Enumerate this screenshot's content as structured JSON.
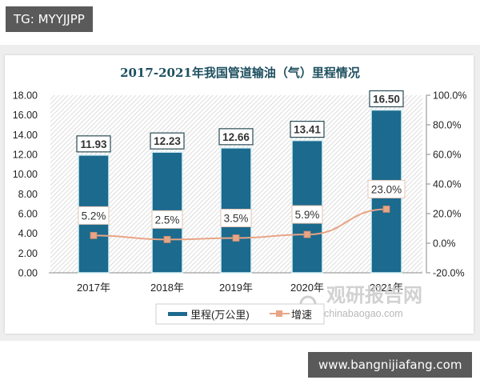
{
  "watermarks": {
    "top_left": "TG: MYYJJPP",
    "bottom_right": "www.bangnijiafang.com",
    "source_logo_cn": "观研报告网",
    "source_logo_en": "chinabaogao.com"
  },
  "colors": {
    "bar": "#1c6a8e",
    "bar_border": "#d8f2f7",
    "line": "#e8a586",
    "marker": "#e8a586",
    "title": "#1d4f5f"
  },
  "chart_data": {
    "type": "bar",
    "title": "2017-2021年我国管道输油（气）里程情况",
    "categories": [
      "2017年",
      "2018年",
      "2019年",
      "2020年",
      "2021年"
    ],
    "series": [
      {
        "name": "里程(万公里)",
        "type": "bar",
        "axis": "left",
        "values": [
          11.93,
          12.23,
          12.66,
          13.41,
          16.5
        ],
        "labels": [
          "11.93",
          "12.23",
          "12.66",
          "13.41",
          "16.50"
        ]
      },
      {
        "name": "增速",
        "type": "line",
        "axis": "right",
        "values": [
          5.2,
          2.5,
          3.5,
          5.9,
          23.0
        ],
        "labels": [
          "5.2%",
          "2.5%",
          "3.5%",
          "5.9%",
          "23.0%"
        ]
      }
    ],
    "left_axis": {
      "ylim": [
        0,
        18
      ],
      "ticks": [
        "0.00",
        "2.00",
        "4.00",
        "6.00",
        "8.00",
        "10.00",
        "12.00",
        "14.00",
        "16.00",
        "18.00"
      ]
    },
    "right_axis": {
      "ylim": [
        -20,
        100
      ],
      "ticks": [
        "-20.0%",
        "0.0%",
        "20.0%",
        "40.0%",
        "60.0%",
        "80.0%",
        "100.0%"
      ]
    },
    "xlabel": "",
    "ylabel": "",
    "grid": false,
    "plot_background": "diagonal-hatch",
    "legend_position": "bottom"
  }
}
